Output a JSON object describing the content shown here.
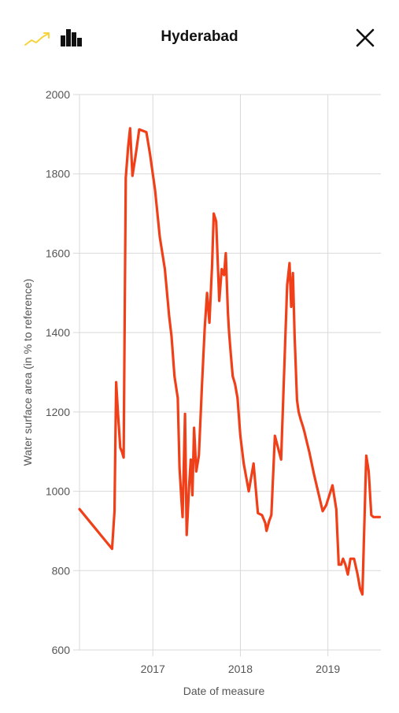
{
  "header": {
    "title": "Hyderabad",
    "line_chart_icon": "line-chart-icon",
    "bar_chart_icon": "bar-chart-icon",
    "close_icon": "close-icon"
  },
  "colors": {
    "accent": "#f5d33a",
    "series": "#f0401a",
    "grid": "#d9d9d9",
    "text": "#555555"
  },
  "chart_data": {
    "type": "line",
    "title": "",
    "xlabel": "Date of measure",
    "ylabel": "Water surface area (in % to reference)",
    "xlim": [
      "2016-03-01",
      "2019-08-10"
    ],
    "ylim": [
      600,
      2000
    ],
    "yticks": [
      600,
      800,
      1000,
      1200,
      1400,
      1600,
      1800,
      2000
    ],
    "xticks": [
      {
        "label": "2017",
        "date": "2017-01-01"
      },
      {
        "label": "2018",
        "date": "2018-01-01"
      },
      {
        "label": "2019",
        "date": "2019-01-01"
      }
    ],
    "grid": true,
    "series": [
      {
        "x": [
          "2016-03-01",
          "2016-07-15",
          "2016-07-25",
          "2016-08-01",
          "2016-08-08",
          "2016-08-18",
          "2016-08-25",
          "2016-09-01",
          "2016-09-10",
          "2016-09-20",
          "2016-09-28",
          "2016-10-08",
          "2016-10-22",
          "2016-11-05",
          "2016-12-05",
          "2016-12-20",
          "2017-01-10",
          "2017-01-30",
          "2017-02-20",
          "2017-03-10",
          "2017-03-20",
          "2017-04-01",
          "2017-04-15",
          "2017-04-22",
          "2017-04-30",
          "2017-05-05",
          "2017-05-15",
          "2017-05-22",
          "2017-06-01",
          "2017-06-08",
          "2017-06-15",
          "2017-06-22",
          "2017-07-01",
          "2017-07-12",
          "2017-07-25",
          "2017-08-05",
          "2017-08-15",
          "2017-08-25",
          "2017-09-05",
          "2017-09-12",
          "2017-09-22",
          "2017-10-05",
          "2017-10-15",
          "2017-10-25",
          "2017-11-01",
          "2017-11-10",
          "2017-11-15",
          "2017-11-22",
          "2017-11-30",
          "2017-12-10",
          "2017-12-20",
          "2018-01-01",
          "2018-01-15",
          "2018-02-05",
          "2018-02-25",
          "2018-03-15",
          "2018-04-01",
          "2018-04-15",
          "2018-04-20",
          "2018-05-01",
          "2018-05-10",
          "2018-05-25",
          "2018-06-20",
          "2018-07-15",
          "2018-07-25",
          "2018-08-01",
          "2018-08-08",
          "2018-08-15",
          "2018-08-25",
          "2018-09-01",
          "2018-09-10",
          "2018-09-18",
          "2018-09-25",
          "2018-10-05",
          "2018-10-15",
          "2018-11-05",
          "2018-12-10",
          "2018-12-25",
          "2019-01-20",
          "2019-02-05",
          "2019-02-15",
          "2019-02-25",
          "2019-03-05",
          "2019-03-15",
          "2019-03-25",
          "2019-04-05",
          "2019-04-20",
          "2019-05-05",
          "2019-05-15",
          "2019-05-25",
          "2019-06-10",
          "2019-06-20",
          "2019-07-01",
          "2019-07-10",
          "2019-07-20",
          "2019-07-25",
          "2019-08-05"
        ],
        "y": [
          955,
          855,
          950,
          1275,
          1200,
          1110,
          1100,
          1085,
          1790,
          1870,
          1915,
          1795,
          1850,
          1912,
          1905,
          1850,
          1760,
          1640,
          1560,
          1440,
          1390,
          1290,
          1235,
          1060,
          980,
          935,
          1195,
          890,
          1010,
          1080,
          990,
          1160,
          1050,
          1090,
          1270,
          1410,
          1500,
          1425,
          1570,
          1700,
          1680,
          1480,
          1560,
          1545,
          1600,
          1450,
          1400,
          1345,
          1290,
          1270,
          1235,
          1140,
          1070,
          1000,
          1070,
          945,
          940,
          920,
          900,
          925,
          940,
          1140,
          1080,
          1520,
          1575,
          1465,
          1550,
          1395,
          1230,
          1200,
          1180,
          1165,
          1150,
          1125,
          1100,
          1040,
          950,
          965,
          1015,
          955,
          815,
          815,
          830,
          815,
          790,
          830,
          830,
          790,
          755,
          740,
          1090,
          1050,
          940,
          935,
          935,
          935,
          935
        ]
      }
    ]
  }
}
